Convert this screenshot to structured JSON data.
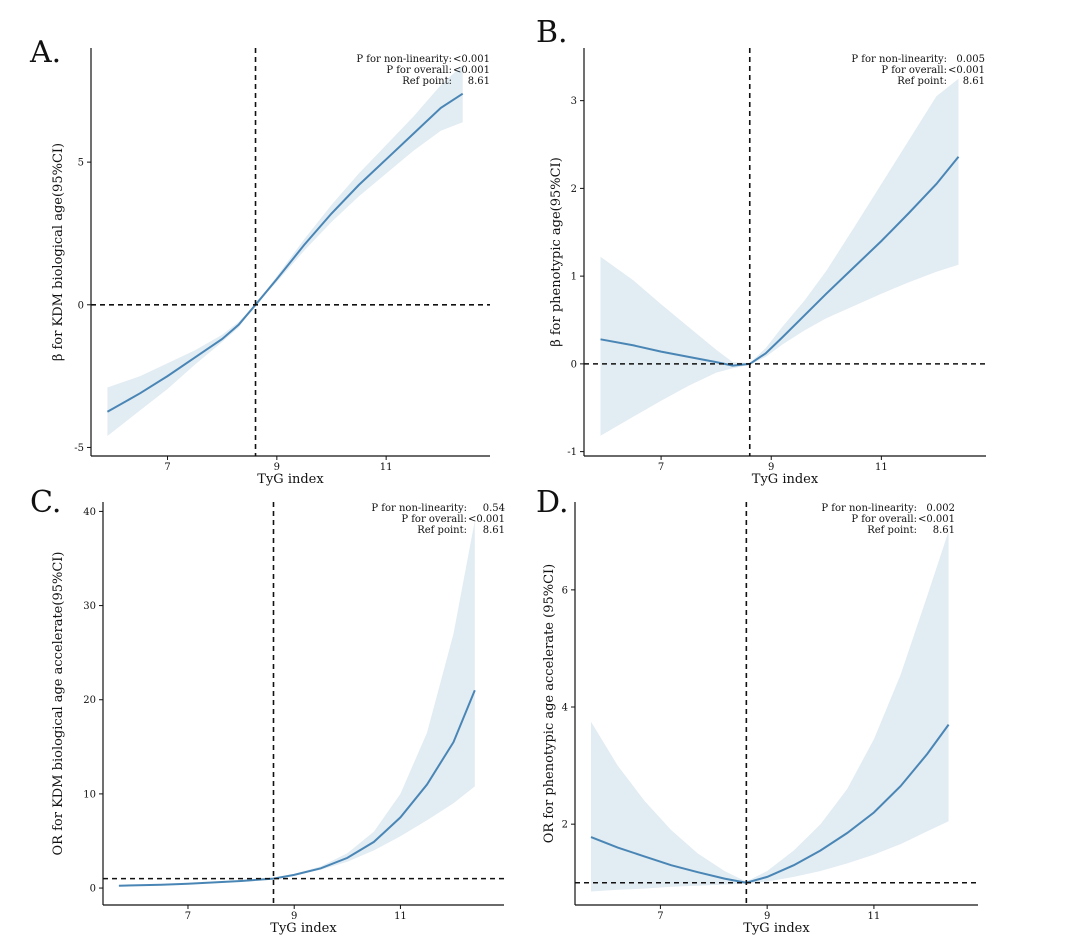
{
  "chart_data": [
    {
      "panel": "A.",
      "type": "line",
      "xlabel": "TyG index",
      "ylabel": "β for KDM biological age(95%CI)",
      "xticks": [
        7,
        9,
        11
      ],
      "yticks": [
        -5,
        0,
        5
      ],
      "xlim": [
        5.6,
        12.9
      ],
      "ylim": [
        -5.3,
        9.0
      ],
      "ref_x": 8.61,
      "ref_y": 0,
      "annotations": [
        {
          "label": "P for non-linearity:",
          "value": "<0.001"
        },
        {
          "label": "P for overall:",
          "value": "<0.001"
        },
        {
          "label": "Ref point:",
          "value": "8.61"
        }
      ],
      "x": [
        5.9,
        6.5,
        7.0,
        7.5,
        8.0,
        8.3,
        8.61,
        9.0,
        9.5,
        10.0,
        10.5,
        11.0,
        11.5,
        12.0,
        12.4
      ],
      "y": [
        -3.75,
        -3.1,
        -2.5,
        -1.85,
        -1.2,
        -0.7,
        0.0,
        0.9,
        2.1,
        3.2,
        4.2,
        5.1,
        6.0,
        6.9,
        7.4
      ],
      "lower": [
        -4.6,
        -3.7,
        -2.95,
        -2.1,
        -1.3,
        -0.8,
        0.0,
        0.8,
        1.9,
        2.9,
        3.8,
        4.6,
        5.4,
        6.1,
        6.4
      ],
      "upper": [
        -2.9,
        -2.5,
        -2.05,
        -1.6,
        -1.05,
        -0.6,
        0.0,
        1.0,
        2.3,
        3.5,
        4.6,
        5.6,
        6.6,
        7.7,
        8.4
      ]
    },
    {
      "panel": "B.",
      "type": "line",
      "xlabel": "TyG index",
      "ylabel": "β for phenotypic age(95%CI)",
      "xticks": [
        7,
        9,
        11
      ],
      "yticks": [
        -1,
        0,
        1,
        2,
        3
      ],
      "xlim": [
        5.6,
        12.9
      ],
      "ylim": [
        -1.05,
        3.6
      ],
      "ref_x": 8.61,
      "ref_y": 0,
      "annotations": [
        {
          "label": "P for non-linearity:",
          "value": "0.005"
        },
        {
          "label": "P for overall:",
          "value": "<0.001"
        },
        {
          "label": "Ref point:",
          "value": "8.61"
        }
      ],
      "x": [
        5.9,
        6.5,
        7.0,
        7.5,
        8.0,
        8.3,
        8.61,
        8.9,
        9.2,
        9.6,
        10.0,
        10.5,
        11.0,
        11.5,
        12.0,
        12.4
      ],
      "y": [
        0.28,
        0.21,
        0.14,
        0.08,
        0.02,
        -0.02,
        0.0,
        0.12,
        0.3,
        0.55,
        0.8,
        1.1,
        1.4,
        1.72,
        2.05,
        2.36
      ],
      "lower": [
        -0.82,
        -0.6,
        -0.42,
        -0.25,
        -0.1,
        -0.05,
        -0.01,
        0.08,
        0.22,
        0.38,
        0.52,
        0.66,
        0.8,
        0.93,
        1.05,
        1.13
      ],
      "upper": [
        1.22,
        0.95,
        0.68,
        0.42,
        0.16,
        0.02,
        0.01,
        0.18,
        0.42,
        0.72,
        1.06,
        1.55,
        2.05,
        2.55,
        3.05,
        3.25
      ]
    },
    {
      "panel": "C.",
      "type": "line",
      "xlabel": "TyG index",
      "ylabel": "OR for KDM biological age accelerate(95%CI)",
      "xticks": [
        7,
        9,
        11
      ],
      "yticks": [
        0,
        10,
        20,
        30,
        40
      ],
      "xlim": [
        5.4,
        12.95
      ],
      "ylim": [
        -1.8,
        41.0
      ],
      "ref_x": 8.61,
      "ref_y": 1,
      "annotations": [
        {
          "label": "P for non-linearity:",
          "value": "0.54"
        },
        {
          "label": "P for overall:",
          "value": "<0.001"
        },
        {
          "label": "Ref point:",
          "value": "8.61"
        }
      ],
      "x": [
        5.7,
        6.5,
        7.0,
        7.5,
        8.0,
        8.61,
        9.0,
        9.5,
        10.0,
        10.5,
        11.0,
        11.5,
        12.0,
        12.4
      ],
      "y": [
        0.25,
        0.35,
        0.45,
        0.6,
        0.75,
        1.0,
        1.4,
        2.1,
        3.2,
        4.9,
        7.5,
        11.0,
        15.5,
        21.0
      ],
      "lower": [
        0.2,
        0.3,
        0.4,
        0.55,
        0.72,
        1.0,
        1.35,
        1.95,
        2.8,
        4.0,
        5.5,
        7.2,
        9.0,
        10.8
      ],
      "upper": [
        0.3,
        0.4,
        0.5,
        0.65,
        0.8,
        1.0,
        1.5,
        2.3,
        3.7,
        6.0,
        10.0,
        16.5,
        27.0,
        39.0
      ]
    },
    {
      "panel": "D.",
      "type": "line",
      "xlabel": "TyG index",
      "ylabel": "OR for phenotypic age accelerate (95%CI)",
      "xticks": [
        7,
        9,
        11
      ],
      "yticks": [
        2,
        4,
        6
      ],
      "xlim": [
        5.4,
        12.95
      ],
      "ylim": [
        0.62,
        7.5
      ],
      "ref_x": 8.61,
      "ref_y": 1,
      "annotations": [
        {
          "label": "P for non-linearity:",
          "value": "0.002"
        },
        {
          "label": "P for overall:",
          "value": "<0.001"
        },
        {
          "label": "Ref point:",
          "value": "8.61"
        }
      ],
      "x": [
        5.7,
        6.2,
        6.7,
        7.2,
        7.7,
        8.2,
        8.61,
        9.0,
        9.5,
        10.0,
        10.5,
        11.0,
        11.5,
        12.0,
        12.4
      ],
      "y": [
        1.78,
        1.6,
        1.45,
        1.3,
        1.18,
        1.07,
        1.0,
        1.1,
        1.3,
        1.55,
        1.85,
        2.2,
        2.65,
        3.2,
        3.7
      ],
      "lower": [
        0.85,
        0.88,
        0.9,
        0.93,
        0.95,
        0.97,
        0.98,
        1.02,
        1.1,
        1.2,
        1.33,
        1.48,
        1.66,
        1.88,
        2.05
      ],
      "upper": [
        3.75,
        3.0,
        2.4,
        1.9,
        1.5,
        1.2,
        1.02,
        1.2,
        1.55,
        2.0,
        2.6,
        3.45,
        4.55,
        5.9,
        7.0
      ]
    }
  ]
}
